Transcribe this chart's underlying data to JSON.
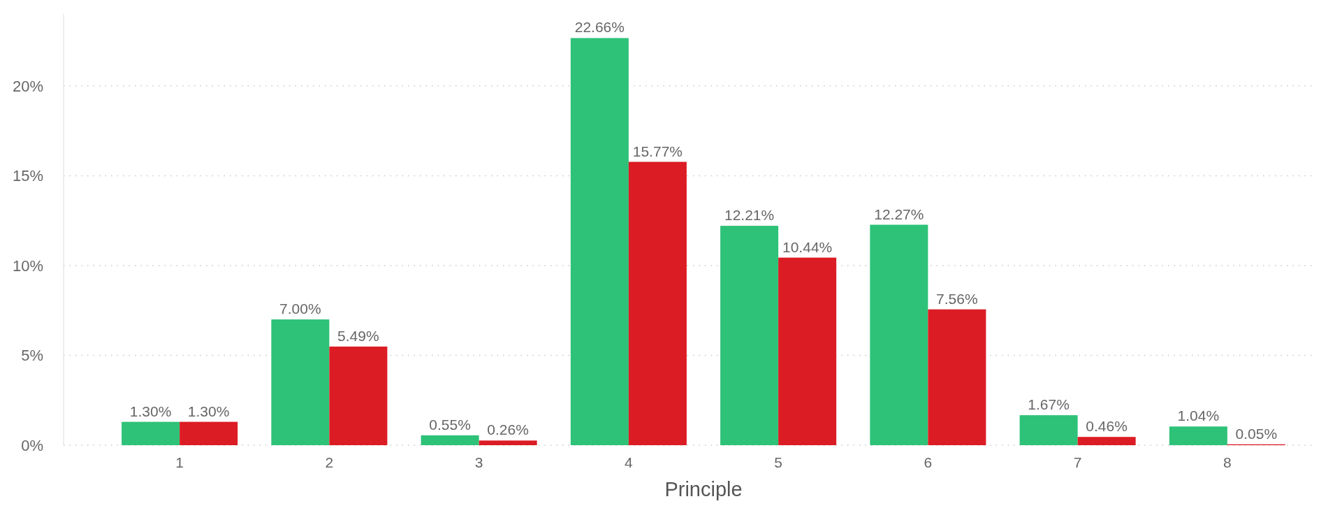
{
  "chart_data": {
    "type": "bar",
    "xlabel": "Principle",
    "categories": [
      "1",
      "2",
      "3",
      "4",
      "5",
      "6",
      "7",
      "8"
    ],
    "series": [
      {
        "color": "#2ec278",
        "values": [
          1.3,
          7.0,
          0.55,
          22.66,
          12.21,
          12.27,
          1.67,
          1.04
        ],
        "value_labels": [
          "1.30%",
          "7.00%",
          "0.55%",
          "22.66%",
          "12.21%",
          "12.27%",
          "1.67%",
          "1.04%"
        ]
      },
      {
        "color": "#dc1c24",
        "values": [
          1.3,
          5.49,
          0.26,
          15.77,
          10.44,
          7.56,
          0.46,
          0.05
        ],
        "value_labels": [
          "1.30%",
          "5.49%",
          "0.26%",
          "15.77%",
          "10.44%",
          "7.56%",
          "0.46%",
          "0.05%"
        ]
      }
    ],
    "yticks": [
      {
        "value": 0,
        "label": "0%"
      },
      {
        "value": 5,
        "label": "5%"
      },
      {
        "value": 10,
        "label": "10%"
      },
      {
        "value": 15,
        "label": "15%"
      },
      {
        "value": 20,
        "label": "20%"
      }
    ],
    "ylim": [
      0,
      24
    ],
    "grid": "y"
  }
}
